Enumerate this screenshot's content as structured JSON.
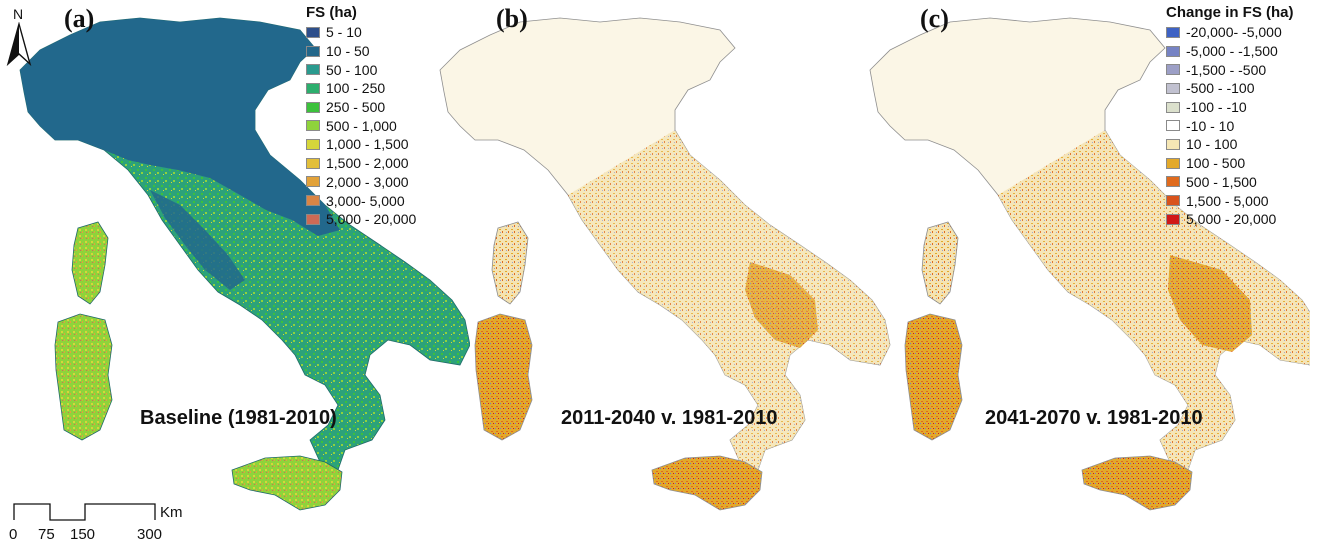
{
  "panels": [
    {
      "letter": "(a)",
      "caption": "Baseline (1981-2010)"
    },
    {
      "letter": "(b)",
      "caption": "2011-2040 v. 1981-2010"
    },
    {
      "letter": "(c)",
      "caption": "2041-2070 v. 1981-2010"
    }
  ],
  "north_arrow": {
    "label": "N"
  },
  "scale_bar": {
    "unit": "Km",
    "ticks": [
      "0",
      "75",
      "150",
      "300"
    ]
  },
  "legend_fs": {
    "title": "FS (ha)",
    "items": [
      {
        "label": "5 - 10",
        "color": "#2e4f8a"
      },
      {
        "label": "10 - 50",
        "color": "#23678a"
      },
      {
        "label": "50 - 100",
        "color": "#2a9a8e"
      },
      {
        "label": "100 - 250",
        "color": "#2cae6d"
      },
      {
        "label": "250 - 500",
        "color": "#3cc13c"
      },
      {
        "label": "500 - 1,000",
        "color": "#8fd33b"
      },
      {
        "label": "1,000 - 1,500",
        "color": "#d6d63a"
      },
      {
        "label": "1,500 - 2,000",
        "color": "#e2bf3a"
      },
      {
        "label": "2,000 - 3,000",
        "color": "#e2a23a"
      },
      {
        "label": "3,000- 5,000",
        "color": "#d98545"
      },
      {
        "label": "5,000 - 20,000",
        "color": "#cd6a55"
      }
    ]
  },
  "legend_change": {
    "title": "Change in FS (ha)",
    "items": [
      {
        "label": "-20,000- -5,000",
        "color": "#3e62c4"
      },
      {
        "label": "-5,000 - -1,500",
        "color": "#7683c4"
      },
      {
        "label": "-1,500 - -500",
        "color": "#9c9fc6"
      },
      {
        "label": "-500 - -100",
        "color": "#c1c1d0"
      },
      {
        "label": "-100 - -10",
        "color": "#dbe0cc"
      },
      {
        "label": "-10 - 10",
        "color": "#ffffff"
      },
      {
        "label": "10 - 100",
        "color": "#f6e7b5"
      },
      {
        "label": "100 - 500",
        "color": "#e3a92a"
      },
      {
        "label": "500 - 1,500",
        "color": "#e06b1e"
      },
      {
        "label": "1,500 - 5,000",
        "color": "#d9531c"
      },
      {
        "label": "5,000 - 20,000",
        "color": "#d01818"
      }
    ]
  }
}
